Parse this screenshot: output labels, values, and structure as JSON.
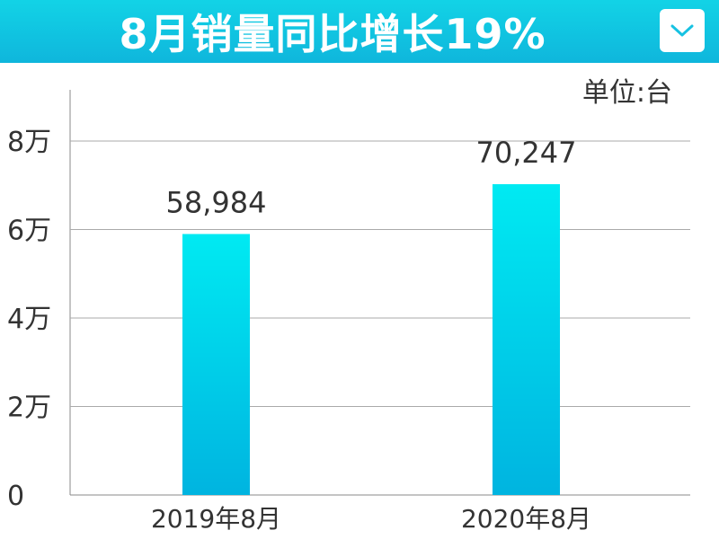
{
  "header": {
    "title": "8月销量同比增长19%"
  },
  "icons": {
    "dropdown": "chevron-down-icon"
  },
  "colors": {
    "header_bg": "#12d3e6",
    "bar_top": "#00eaf2",
    "bar_bottom": "#00b4e0"
  },
  "chart_data": {
    "type": "bar",
    "unit_label": "单位:台",
    "categories": [
      "2019年8月",
      "2020年8月"
    ],
    "values": [
      58984,
      70247
    ],
    "value_labels": [
      "58,984",
      "70,247"
    ],
    "ylim": [
      0,
      80000
    ],
    "yticks": [
      0,
      20000,
      40000,
      60000,
      80000
    ],
    "ytick_labels": [
      "0",
      "2万",
      "4万",
      "6万",
      "8万"
    ],
    "grid": true
  }
}
